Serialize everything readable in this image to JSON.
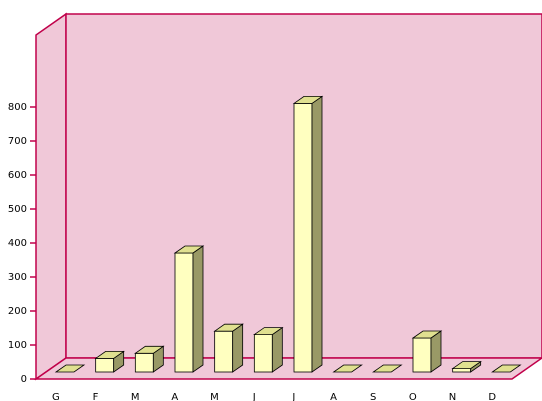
{
  "chart_data": {
    "type": "bar3d",
    "categories": [
      "G",
      "F",
      "M",
      "A",
      "M",
      "J",
      "J",
      "A",
      "S",
      "O",
      "N",
      "D"
    ],
    "values": [
      0,
      40,
      55,
      350,
      120,
      110,
      790,
      0,
      0,
      100,
      10,
      0
    ],
    "color": "#ffffc0",
    "ylim": [
      0,
      1000
    ],
    "yticks": [
      0,
      100,
      200,
      300,
      400,
      500,
      600,
      700,
      800
    ],
    "grid": false
  }
}
